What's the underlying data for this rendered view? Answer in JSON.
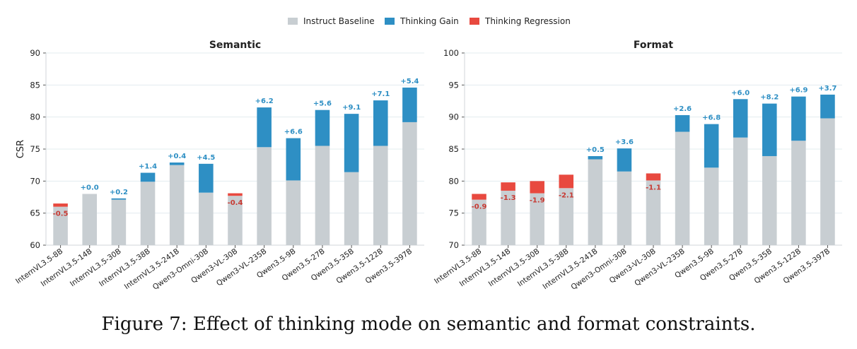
{
  "legend": [
    {
      "label": "Instruct Baseline",
      "color": "#c8ced2"
    },
    {
      "label": "Thinking Gain",
      "color": "#2e8fc4"
    },
    {
      "label": "Thinking Regression",
      "color": "#e8493f"
    }
  ],
  "caption": "Figure 7: Effect of thinking mode on semantic and format constraints.",
  "chart_data": [
    {
      "type": "bar",
      "stacked": true,
      "title": "Semantic",
      "ylabel": "CSR",
      "xlabel": "",
      "ylim": [
        60,
        90
      ],
      "yticks": [
        60,
        65,
        70,
        75,
        80,
        85,
        90
      ],
      "grid": true,
      "legend_position": "top-center",
      "categories": [
        "InternVL3.5-8B",
        "InternVL3.5-14B",
        "InternVL3.5-30B",
        "InternVL3.5-38B",
        "InternVL3.5-241B",
        "Qwen3-Omni-30B",
        "Qwen3-VL-30B",
        "Qwen3-VL-235B",
        "Qwen3.5-9B",
        "Qwen3.5-27B",
        "Qwen3.5-35B",
        "Qwen3.5-122B",
        "Qwen3.5-397B"
      ],
      "instruct": [
        66.5,
        68.0,
        67.1,
        69.9,
        72.5,
        68.2,
        68.1,
        75.3,
        70.1,
        75.5,
        71.4,
        75.5,
        79.2
      ],
      "thinking": [
        66.0,
        68.0,
        67.3,
        71.3,
        72.9,
        72.7,
        67.7,
        81.5,
        76.7,
        81.1,
        80.5,
        82.6,
        84.6
      ],
      "delta_labels": [
        "-0.5",
        "+0.0",
        "+0.2",
        "+1.4",
        "+0.4",
        "+4.5",
        "-0.4",
        "+6.2",
        "+6.6",
        "+5.6",
        "+9.1",
        "+7.1",
        "+5.4"
      ]
    },
    {
      "type": "bar",
      "stacked": true,
      "title": "Format",
      "ylabel": "",
      "xlabel": "",
      "ylim": [
        70,
        100
      ],
      "yticks": [
        70,
        75,
        80,
        85,
        90,
        95,
        100
      ],
      "grid": true,
      "legend_position": "top-center",
      "categories": [
        "InternVL3.5-8B",
        "InternVL3.5-14B",
        "InternVL3.5-30B",
        "InternVL3.5-38B",
        "InternVL3.5-241B",
        "Qwen3-Omni-30B",
        "Qwen3-VL-30B",
        "Qwen3-VL-235B",
        "Qwen3.5-9B",
        "Qwen3.5-27B",
        "Qwen3.5-35B",
        "Qwen3.5-122B",
        "Qwen3.5-397B"
      ],
      "instruct": [
        78.0,
        79.8,
        80.0,
        81.0,
        83.4,
        81.5,
        81.2,
        87.7,
        82.1,
        86.8,
        83.9,
        86.3,
        89.8
      ],
      "thinking": [
        77.1,
        78.5,
        78.1,
        78.9,
        83.9,
        85.1,
        80.1,
        90.3,
        88.9,
        92.8,
        92.1,
        93.2,
        93.5
      ],
      "delta_labels": [
        "-0.9",
        "-1.3",
        "-1.9",
        "-2.1",
        "+0.5",
        "+3.6",
        "-1.1",
        "+2.6",
        "+6.8",
        "+6.0",
        "+8.2",
        "+6.9",
        "+3.7"
      ]
    }
  ]
}
